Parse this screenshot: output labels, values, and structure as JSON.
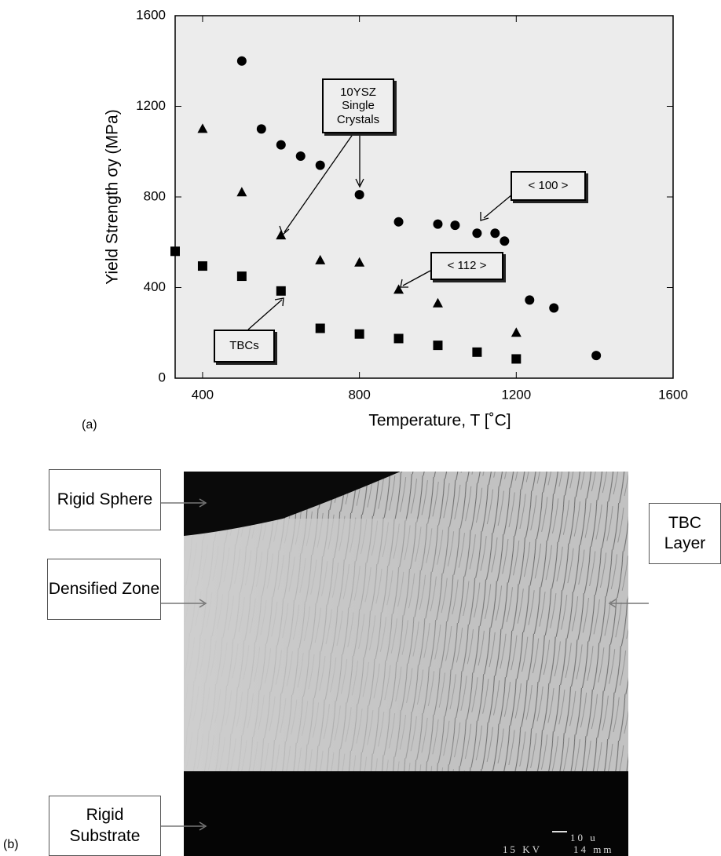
{
  "chart_data": {
    "type": "scatter",
    "x_label": "Temperature, T [˚C]",
    "y_label": "Yield Strength σy (MPa)",
    "xlim": [
      330,
      1600
    ],
    "ylim": [
      0,
      1600
    ],
    "xticks": [
      400,
      800,
      1200,
      1600
    ],
    "yticks": [
      0,
      400,
      800,
      1200,
      1600
    ],
    "annotations": [
      "10YSZ Single Crystals"
    ],
    "series": [
      {
        "name": "< 100 >",
        "marker": "circle",
        "color": "#000000",
        "x": [
          500,
          550,
          600,
          650,
          700,
          800,
          900,
          1000,
          1044,
          1100,
          1146,
          1170,
          1234,
          1296,
          1404
        ],
        "values": [
          1400,
          1100,
          1030,
          980,
          940,
          810,
          690,
          680,
          675,
          640,
          640,
          605,
          345,
          310,
          100
        ]
      },
      {
        "name": "< 112 >",
        "marker": "triangle",
        "color": "#000000",
        "x": [
          400,
          500,
          600,
          700,
          800,
          900,
          1000,
          1200
        ],
        "values": [
          1100,
          820,
          630,
          520,
          510,
          390,
          330,
          200
        ]
      },
      {
        "name": "TBCs",
        "marker": "square",
        "color": "#000000",
        "x": [
          330,
          400,
          500,
          600,
          700,
          800,
          900,
          1000,
          1100,
          1200
        ],
        "values": [
          560,
          495,
          450,
          385,
          220,
          195,
          175,
          145,
          115,
          85
        ]
      }
    ]
  },
  "panel_labels": [
    "(a)",
    "(b)"
  ],
  "figure_b": {
    "labels": [
      "Rigid Sphere",
      "Densified Zone",
      "TBC Layer",
      "Rigid Substrate"
    ],
    "scale_bar": "10 u",
    "voltage": "15 KV",
    "distance": "14 mm"
  }
}
